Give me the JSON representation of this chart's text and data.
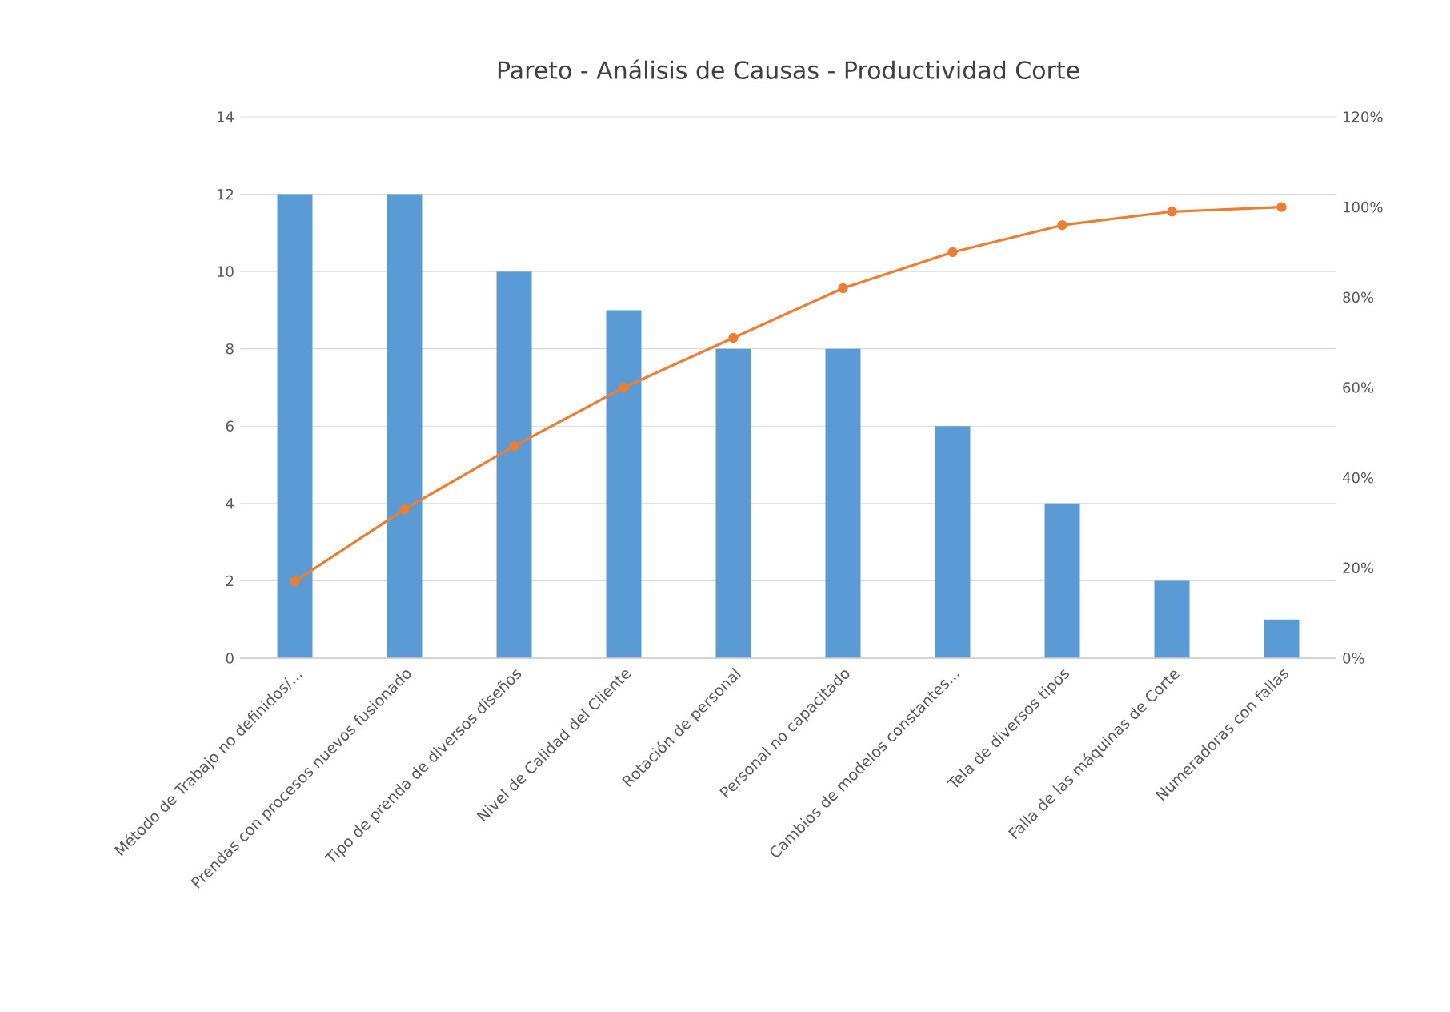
{
  "chart_data": {
    "type": "bar",
    "title": "Pareto - Análisis de Causas - Productividad Corte",
    "categories": [
      "Método de Trabajo no definidos/...",
      "Prendas con procesos nuevos fusionado",
      "Tipo de prenda de diversos diseños",
      "Nivel de Calidad del Cliente",
      "Rotación de personal",
      "Personal no capacitado",
      "Cambios de modelos constantes...",
      "Tela de diversos tipos",
      "Falla de las máquinas de Corte",
      "Numeradoras con fallas"
    ],
    "series": [
      {
        "color": "#5b9bd5",
        "values": [
          12,
          12,
          10,
          9,
          8,
          8,
          6,
          4,
          2,
          1
        ]
      },
      {
        "type": "line",
        "axis": "y2",
        "color": "#ed7d31",
        "marker": "circle",
        "values": [
          17,
          33,
          47,
          60,
          71,
          82,
          90,
          96,
          99,
          100
        ]
      }
    ],
    "ylim": [
      0,
      14
    ],
    "yticks": [
      0,
      2,
      4,
      6,
      8,
      10,
      12,
      14
    ],
    "y2lim": [
      0,
      120
    ],
    "y2ticks": [
      {
        "value": 0,
        "label": "0%"
      },
      {
        "value": 20,
        "label": "20%"
      },
      {
        "value": 40,
        "label": "40%"
      },
      {
        "value": 60,
        "label": "60%"
      },
      {
        "value": 80,
        "label": "80%"
      },
      {
        "value": 100,
        "label": "100%"
      },
      {
        "value": 120,
        "label": "120%"
      }
    ],
    "grid": "y"
  }
}
